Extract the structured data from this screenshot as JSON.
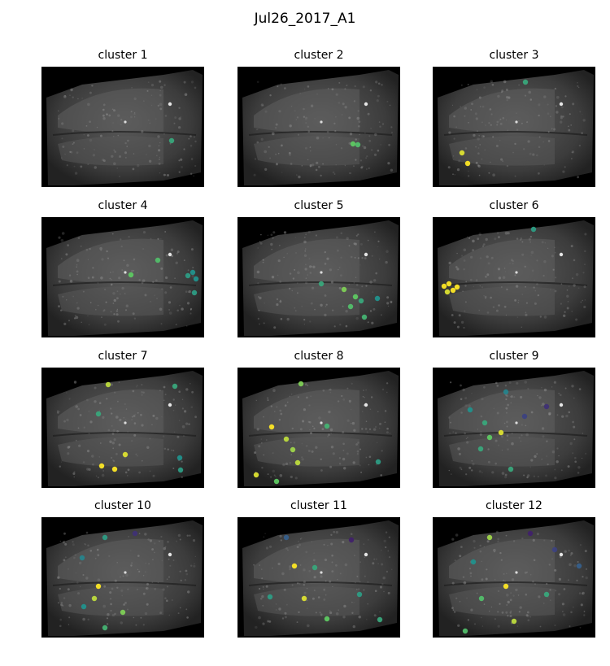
{
  "figure": {
    "title": "Jul26_2017_A1"
  },
  "colors": {
    "background": "#000000",
    "brain_tissue": "#4a4a4a",
    "colormap": "viridis",
    "dot_low": "#440154",
    "dot_mid": "#21918c",
    "dot_high": "#fde725"
  },
  "panels": [
    {
      "title": "cluster 1",
      "points": [
        {
          "x": 160,
          "y": 91,
          "c": 0.6
        }
      ]
    },
    {
      "title": "cluster 2",
      "points": [
        {
          "x": 142,
          "y": 95,
          "c": 0.75
        },
        {
          "x": 148,
          "y": 96,
          "c": 0.7
        }
      ]
    },
    {
      "title": "cluster 3",
      "points": [
        {
          "x": 114,
          "y": 19,
          "c": 0.6
        },
        {
          "x": 36,
          "y": 106,
          "c": 0.95
        },
        {
          "x": 43,
          "y": 119,
          "c": 1.0
        }
      ]
    },
    {
      "title": "cluster 4",
      "points": [
        {
          "x": 110,
          "y": 71,
          "c": 0.75
        },
        {
          "x": 143,
          "y": 53,
          "c": 0.7
        },
        {
          "x": 180,
          "y": 72,
          "c": 0.55
        },
        {
          "x": 186,
          "y": 68,
          "c": 0.5
        },
        {
          "x": 190,
          "y": 76,
          "c": 0.5
        },
        {
          "x": 188,
          "y": 93,
          "c": 0.55
        }
      ]
    },
    {
      "title": "cluster 5",
      "points": [
        {
          "x": 103,
          "y": 82,
          "c": 0.6
        },
        {
          "x": 131,
          "y": 89,
          "c": 0.8
        },
        {
          "x": 145,
          "y": 98,
          "c": 0.75
        },
        {
          "x": 139,
          "y": 110,
          "c": 0.7
        },
        {
          "x": 152,
          "y": 103,
          "c": 0.6
        },
        {
          "x": 172,
          "y": 100,
          "c": 0.5
        },
        {
          "x": 156,
          "y": 123,
          "c": 0.65
        }
      ]
    },
    {
      "title": "cluster 6",
      "points": [
        {
          "x": 124,
          "y": 15,
          "c": 0.55
        },
        {
          "x": 14,
          "y": 85,
          "c": 1.0
        },
        {
          "x": 20,
          "y": 82,
          "c": 1.0
        },
        {
          "x": 25,
          "y": 90,
          "c": 1.0
        },
        {
          "x": 18,
          "y": 92,
          "c": 0.95
        },
        {
          "x": 30,
          "y": 86,
          "c": 1.0
        }
      ]
    },
    {
      "title": "cluster 7",
      "points": [
        {
          "x": 82,
          "y": 21,
          "c": 0.9
        },
        {
          "x": 70,
          "y": 57,
          "c": 0.6
        },
        {
          "x": 164,
          "y": 23,
          "c": 0.6
        },
        {
          "x": 74,
          "y": 121,
          "c": 1.0
        },
        {
          "x": 90,
          "y": 125,
          "c": 1.0
        },
        {
          "x": 103,
          "y": 107,
          "c": 0.95
        },
        {
          "x": 171,
          "y": 126,
          "c": 0.55
        },
        {
          "x": 170,
          "y": 111,
          "c": 0.5
        }
      ]
    },
    {
      "title": "cluster 8",
      "points": [
        {
          "x": 78,
          "y": 20,
          "c": 0.8
        },
        {
          "x": 42,
          "y": 73,
          "c": 1.0
        },
        {
          "x": 60,
          "y": 88,
          "c": 0.9
        },
        {
          "x": 68,
          "y": 101,
          "c": 0.85
        },
        {
          "x": 74,
          "y": 117,
          "c": 0.9
        },
        {
          "x": 23,
          "y": 132,
          "c": 0.95
        },
        {
          "x": 48,
          "y": 140,
          "c": 0.75
        },
        {
          "x": 110,
          "y": 72,
          "c": 0.65
        },
        {
          "x": 173,
          "y": 116,
          "c": 0.55
        }
      ]
    },
    {
      "title": "cluster 9",
      "points": [
        {
          "x": 90,
          "y": 30,
          "c": 0.45
        },
        {
          "x": 46,
          "y": 52,
          "c": 0.5
        },
        {
          "x": 64,
          "y": 68,
          "c": 0.6
        },
        {
          "x": 84,
          "y": 80,
          "c": 0.95
        },
        {
          "x": 70,
          "y": 86,
          "c": 0.75
        },
        {
          "x": 59,
          "y": 100,
          "c": 0.6
        },
        {
          "x": 113,
          "y": 60,
          "c": 0.2
        },
        {
          "x": 140,
          "y": 48,
          "c": 0.15
        },
        {
          "x": 96,
          "y": 125,
          "c": 0.6
        }
      ]
    },
    {
      "title": "cluster 10",
      "points": [
        {
          "x": 78,
          "y": 25,
          "c": 0.55
        },
        {
          "x": 115,
          "y": 20,
          "c": 0.15
        },
        {
          "x": 50,
          "y": 50,
          "c": 0.45
        },
        {
          "x": 70,
          "y": 85,
          "c": 1.0
        },
        {
          "x": 65,
          "y": 100,
          "c": 0.9
        },
        {
          "x": 52,
          "y": 110,
          "c": 0.5
        },
        {
          "x": 100,
          "y": 117,
          "c": 0.8
        },
        {
          "x": 78,
          "y": 136,
          "c": 0.65
        }
      ]
    },
    {
      "title": "cluster 11",
      "points": [
        {
          "x": 60,
          "y": 25,
          "c": 0.3
        },
        {
          "x": 140,
          "y": 28,
          "c": 0.1
        },
        {
          "x": 70,
          "y": 60,
          "c": 1.0
        },
        {
          "x": 95,
          "y": 62,
          "c": 0.6
        },
        {
          "x": 82,
          "y": 100,
          "c": 0.95
        },
        {
          "x": 40,
          "y": 98,
          "c": 0.55
        },
        {
          "x": 150,
          "y": 95,
          "c": 0.55
        },
        {
          "x": 110,
          "y": 125,
          "c": 0.75
        },
        {
          "x": 175,
          "y": 126,
          "c": 0.6
        }
      ]
    },
    {
      "title": "cluster 12",
      "points": [
        {
          "x": 70,
          "y": 25,
          "c": 0.85
        },
        {
          "x": 120,
          "y": 20,
          "c": 0.1
        },
        {
          "x": 150,
          "y": 40,
          "c": 0.2
        },
        {
          "x": 50,
          "y": 55,
          "c": 0.5
        },
        {
          "x": 90,
          "y": 85,
          "c": 1.0
        },
        {
          "x": 60,
          "y": 100,
          "c": 0.7
        },
        {
          "x": 140,
          "y": 95,
          "c": 0.6
        },
        {
          "x": 100,
          "y": 128,
          "c": 0.9
        },
        {
          "x": 180,
          "y": 60,
          "c": 0.3
        },
        {
          "x": 40,
          "y": 140,
          "c": 0.7
        }
      ]
    }
  ]
}
